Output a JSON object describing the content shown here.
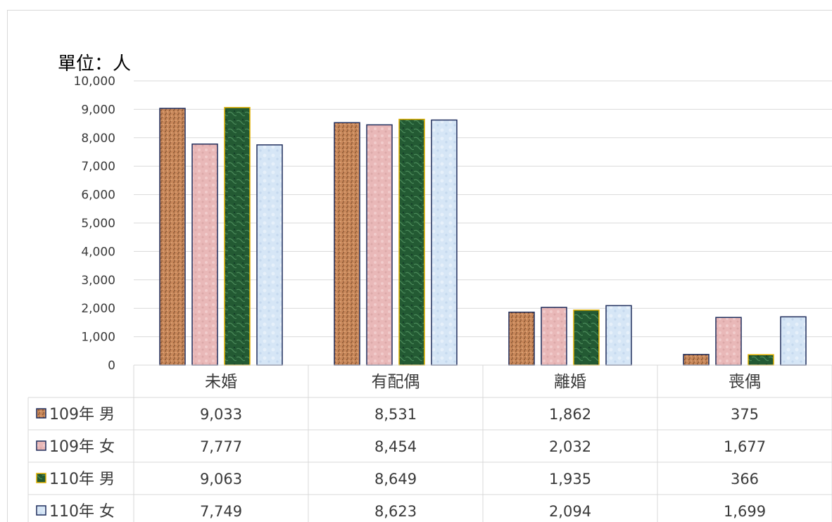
{
  "unit_label": "單位：人",
  "chart_data": {
    "type": "bar",
    "categories": [
      "未婚",
      "有配偶",
      "離婚",
      "喪偶"
    ],
    "series": [
      {
        "name": "109年 男",
        "values": [
          9033,
          8531,
          1862,
          375
        ],
        "display": [
          "9,033",
          "8,531",
          "1,862",
          "375"
        ],
        "color": "#c8875a",
        "border": "#1f2d5c"
      },
      {
        "name": "109年 女",
        "values": [
          7777,
          8454,
          2032,
          1677
        ],
        "display": [
          "7,777",
          "8,454",
          "2,032",
          "1,677"
        ],
        "color": "#e9b8b8",
        "border": "#1f2d5c"
      },
      {
        "name": "110年 男",
        "values": [
          9063,
          8649,
          1935,
          366
        ],
        "display": [
          "9,063",
          "8,649",
          "1,935",
          "366"
        ],
        "color": "#235a33",
        "border": "#e0b000"
      },
      {
        "name": "110年 女",
        "values": [
          7749,
          8623,
          2094,
          1699
        ],
        "display": [
          "7,749",
          "8,623",
          "2,094",
          "1,699"
        ],
        "color": "#d6e6f6",
        "border": "#1f2d5c"
      }
    ],
    "yticks": [
      "0",
      "1,000",
      "2,000",
      "3,000",
      "4,000",
      "5,000",
      "6,000",
      "7,000",
      "8,000",
      "9,000",
      "10,000"
    ],
    "ylim": [
      0,
      10000
    ],
    "grid": true,
    "legend": "data table"
  }
}
